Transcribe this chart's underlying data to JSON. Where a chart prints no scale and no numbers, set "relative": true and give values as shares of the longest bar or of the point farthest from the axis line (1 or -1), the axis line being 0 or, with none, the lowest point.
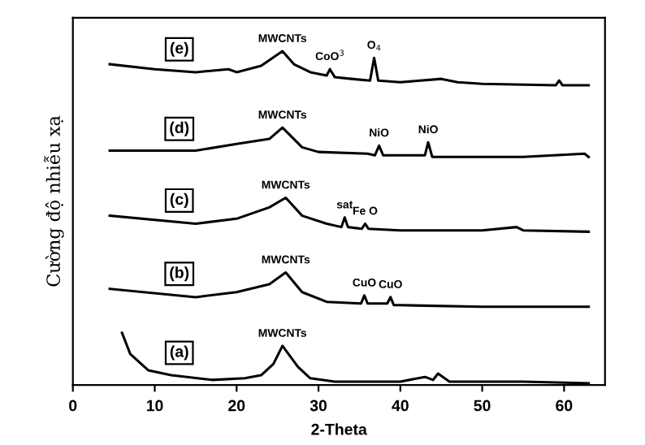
{
  "chart_data": {
    "type": "line",
    "xlabel": "2-Theta",
    "ylabel": "Cường độ nhiễu xạ",
    "relative": true,
    "xlim": [
      0,
      65
    ],
    "xticks": [
      0,
      10,
      20,
      30,
      40,
      50,
      60
    ],
    "tick_labels": "x",
    "grid": false,
    "legend": false,
    "marker": "none",
    "line_style": "solid",
    "series": [
      {
        "name": "(e)",
        "color": "#000000",
        "x": [
          4.5,
          10,
          15,
          19,
          20,
          23,
          25.6,
          27,
          29,
          31,
          31.4,
          32,
          34,
          36.3,
          36.8,
          37.3,
          40,
          45,
          47,
          50,
          59,
          59.4,
          59.8,
          63
        ],
        "values": [
          0.961,
          0.946,
          0.937,
          0.946,
          0.937,
          0.956,
          1.0,
          0.961,
          0.937,
          0.927,
          0.946,
          0.922,
          0.917,
          0.912,
          0.98,
          0.912,
          0.907,
          0.917,
          0.907,
          0.902,
          0.898,
          0.912,
          0.898,
          0.898
        ]
      },
      {
        "name": "(d)",
        "color": "#000000",
        "x": [
          4.5,
          15,
          20,
          24,
          25.6,
          28,
          30,
          36,
          36.9,
          37.4,
          37.9,
          40,
          43,
          43.4,
          43.9,
          45,
          55,
          62.5,
          63
        ],
        "values": [
          0.702,
          0.702,
          0.722,
          0.737,
          0.771,
          0.712,
          0.698,
          0.693,
          0.688,
          0.717,
          0.688,
          0.688,
          0.688,
          0.727,
          0.683,
          0.683,
          0.683,
          0.693,
          0.683
        ]
      },
      {
        "name": "(c)",
        "color": "#000000",
        "x": [
          4.5,
          15,
          20,
          24,
          26,
          28,
          31,
          32.8,
          33.2,
          33.6,
          35.3,
          35.7,
          36.1,
          40,
          50,
          54.2,
          55,
          63
        ],
        "values": [
          0.507,
          0.483,
          0.498,
          0.532,
          0.561,
          0.507,
          0.483,
          0.473,
          0.502,
          0.473,
          0.468,
          0.483,
          0.468,
          0.463,
          0.463,
          0.473,
          0.463,
          0.459
        ]
      },
      {
        "name": "(b)",
        "color": "#000000",
        "x": [
          4.5,
          15,
          20,
          24,
          26,
          28,
          31,
          35.2,
          35.6,
          36,
          38.4,
          38.8,
          39.2,
          40,
          50,
          63
        ],
        "values": [
          0.288,
          0.263,
          0.278,
          0.302,
          0.337,
          0.278,
          0.249,
          0.244,
          0.268,
          0.244,
          0.244,
          0.263,
          0.239,
          0.239,
          0.234,
          0.234
        ]
      },
      {
        "name": "(a)",
        "color": "#000000",
        "x": [
          6,
          7,
          9.2,
          12,
          17,
          21,
          23,
          24.5,
          25.6,
          27.5,
          29,
          32,
          40,
          43,
          44,
          44.6,
          46,
          55,
          63
        ],
        "values": [
          0.156,
          0.093,
          0.044,
          0.029,
          0.015,
          0.02,
          0.029,
          0.063,
          0.117,
          0.054,
          0.02,
          0.01,
          0.01,
          0.024,
          0.015,
          0.034,
          0.01,
          0.01,
          0.005
        ]
      }
    ],
    "annotations": [
      {
        "text": "MWCNTs",
        "x": 25.6,
        "y": 1.0
      },
      {
        "text": "CoO$^{3}$",
        "x": 31.4,
        "y": 0.946
      },
      {
        "text": "O$_{4}$",
        "x": 36.8,
        "y": 0.98
      },
      {
        "text": "MWCNTs",
        "x": 25.6,
        "y": 0.771
      },
      {
        "text": "NiO",
        "x": 37.4,
        "y": 0.717
      },
      {
        "text": "NiO",
        "x": 43.4,
        "y": 0.727
      },
      {
        "text": "MWCNTs",
        "x": 26,
        "y": 0.561
      },
      {
        "text": "sat",
        "x": 33.2,
        "y": 0.502
      },
      {
        "text": "Fe O",
        "x": 35.7,
        "y": 0.483
      },
      {
        "text": "MWCNTs",
        "x": 26,
        "y": 0.337
      },
      {
        "text": "CuO",
        "x": 35.6,
        "y": 0.268
      },
      {
        "text": "CuO",
        "x": 38.8,
        "y": 0.263
      },
      {
        "text": "MWCNTs",
        "x": 25.6,
        "y": 0.117
      }
    ]
  }
}
